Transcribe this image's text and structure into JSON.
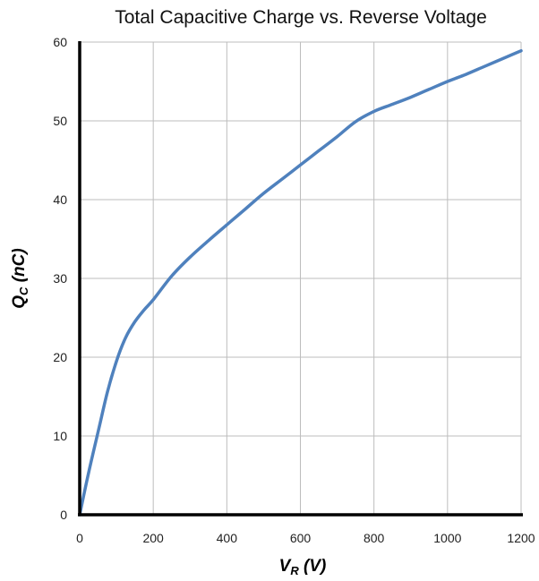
{
  "chart_data": {
    "type": "line",
    "title": "Total Capacitive Charge vs. Reverse Voltage",
    "xlabel": {
      "main": "V",
      "sub": "R",
      "unit": " (V)"
    },
    "ylabel": {
      "main": "Q",
      "sub": "C",
      "unit": " (nC)"
    },
    "xlim": [
      0,
      1200
    ],
    "ylim": [
      0,
      60
    ],
    "x_ticks": [
      0,
      200,
      400,
      600,
      800,
      1000,
      1200
    ],
    "y_ticks": [
      0,
      10,
      20,
      30,
      40,
      50,
      60
    ],
    "x_tick_labels": [
      "0",
      "200",
      "400",
      "600",
      "800",
      "1000",
      "1200"
    ],
    "y_tick_labels": [
      "0",
      "10",
      "20",
      "30",
      "40",
      "50",
      "60"
    ],
    "grid": true,
    "series": [
      {
        "color": "#4f81bd",
        "x": [
          0,
          25,
          50,
          75,
          100,
          125,
          150,
          175,
          200,
          250,
          300,
          350,
          400,
          450,
          500,
          550,
          600,
          650,
          700,
          750,
          800,
          850,
          900,
          950,
          1000,
          1050,
          1100,
          1150,
          1200
        ],
        "y": [
          0,
          5.5,
          10.5,
          15.5,
          19.5,
          22.5,
          24.5,
          26.0,
          27.3,
          30.3,
          32.7,
          34.8,
          36.8,
          38.8,
          40.8,
          42.6,
          44.4,
          46.2,
          48.0,
          49.9,
          51.2,
          52.1,
          53.0,
          54.0,
          55.0,
          55.9,
          56.9,
          57.9,
          58.9
        ]
      }
    ]
  }
}
